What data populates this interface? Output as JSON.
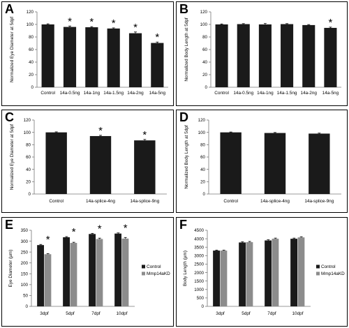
{
  "chart_data": [
    {
      "panel": "A",
      "type": "bar",
      "ylabel": "Normalized Eye Diameter at 5dpf",
      "ylim": [
        0,
        120
      ],
      "yticks": [
        0,
        20,
        40,
        60,
        80,
        100,
        120
      ],
      "categories": [
        "Control",
        "14a-0.5ng",
        "14a-1ng",
        "14a-1.5ng",
        "14a-2ng",
        "14a-5ng"
      ],
      "values": [
        100,
        96,
        95.5,
        93.5,
        86,
        70.5
      ],
      "errors": [
        1,
        1.5,
        1,
        1,
        2,
        1.5
      ],
      "significant": [
        false,
        true,
        true,
        true,
        true,
        true
      ],
      "sig_marker": "*"
    },
    {
      "panel": "B",
      "type": "bar",
      "ylabel": "Normalized Body Length at 5dpf",
      "ylim": [
        0,
        120
      ],
      "yticks": [
        0,
        20,
        40,
        60,
        80,
        100,
        120
      ],
      "categories": [
        "Control",
        "14a-0.5ng",
        "14a-1ng",
        "14a-1.5ng",
        "14a-2ng",
        "14a-5ng"
      ],
      "values": [
        100,
        100.5,
        100,
        100.5,
        99,
        94.5
      ],
      "errors": [
        0.8,
        0.8,
        1.5,
        0.8,
        0.8,
        1.2
      ],
      "significant": [
        false,
        false,
        false,
        false,
        false,
        true
      ],
      "sig_marker": "*"
    },
    {
      "panel": "C",
      "type": "bar",
      "ylabel": "Normalized Eye Diameter at 5dpf",
      "ylim": [
        0,
        120
      ],
      "yticks": [
        0,
        20,
        40,
        60,
        80,
        100,
        120
      ],
      "categories": [
        "Control",
        "14a-splice-4ng",
        "14a-splice-9ng"
      ],
      "values": [
        100,
        94,
        87
      ],
      "errors": [
        0.8,
        1.2,
        1.5
      ],
      "significant": [
        false,
        true,
        true
      ],
      "sig_marker": "*"
    },
    {
      "panel": "D",
      "type": "bar",
      "ylabel": "Normalized Body Length at 5dpf",
      "ylim": [
        0,
        120
      ],
      "yticks": [
        0,
        20,
        40,
        60,
        80,
        100,
        120
      ],
      "categories": [
        "Control",
        "14a-splice-4ng",
        "14a-splice-9ng"
      ],
      "values": [
        100,
        99,
        98
      ],
      "errors": [
        0.6,
        0.8,
        0.8
      ],
      "significant": [
        false,
        false,
        false
      ],
      "sig_marker": "*"
    },
    {
      "panel": "E",
      "type": "bar",
      "ylabel": "Eye Diameter (µm)",
      "ylim": [
        0,
        350
      ],
      "yticks": [
        0,
        50,
        100,
        150,
        200,
        250,
        300,
        350
      ],
      "categories": [
        "3dpf",
        "5dpf",
        "7dpf",
        "10dpf"
      ],
      "series": [
        {
          "name": "Control",
          "values": [
            282,
            318,
            333,
            335
          ],
          "errors": [
            3,
            3,
            3,
            3
          ],
          "color": "#1a1a1a"
        },
        {
          "name": "Mmp14aKD",
          "values": [
            240,
            292,
            310,
            312
          ],
          "errors": [
            3,
            3,
            4,
            5
          ],
          "color": "#8c8c8c"
        }
      ],
      "significant": [
        true,
        true,
        true,
        true
      ],
      "sig_marker": "*",
      "legend": "right"
    },
    {
      "panel": "F",
      "type": "bar",
      "ylabel": "Body Length (µm)",
      "ylim": [
        0,
        4500
      ],
      "yticks": [
        0,
        500,
        1000,
        1500,
        2000,
        2500,
        3000,
        3500,
        4000,
        4500
      ],
      "categories": [
        "3dpf",
        "5dpf",
        "7dpf",
        "10dpf"
      ],
      "series": [
        {
          "name": "Control",
          "values": [
            3300,
            3780,
            3900,
            4000
          ],
          "errors": [
            30,
            40,
            40,
            40
          ],
          "color": "#1a1a1a"
        },
        {
          "name": "Mmp14aKD",
          "values": [
            3300,
            3800,
            4000,
            4080
          ],
          "errors": [
            30,
            40,
            40,
            40
          ],
          "color": "#8c8c8c"
        }
      ],
      "significant": [
        false,
        false,
        false,
        false
      ],
      "sig_marker": "*",
      "legend": "right"
    }
  ]
}
